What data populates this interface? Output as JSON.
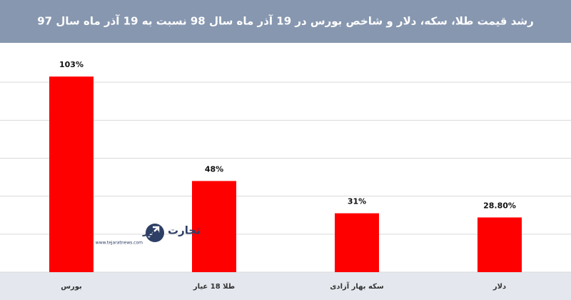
{
  "chart_data": {
    "type": "bar",
    "title": "رشد قیمت طلا، سکه، دلار و شاخص بورس در 19 آذر ماه سال 98 نسبت به 19 آذر ماه سال 97",
    "categories": [
      "بورس",
      "طلا 18 عیار",
      "سکه بهار آزادی",
      "دلار"
    ],
    "values": [
      103,
      48,
      31,
      28.8
    ],
    "value_labels": [
      "103%",
      "48%",
      "31%",
      "28.80%"
    ],
    "color": "#ff0000",
    "ylim": [
      0,
      120
    ],
    "yticks": [
      0,
      20,
      40,
      60,
      80,
      100
    ],
    "grid": true
  },
  "watermark": {
    "name": "تجارت نیوز",
    "url": "www.tejaratnews.com"
  }
}
